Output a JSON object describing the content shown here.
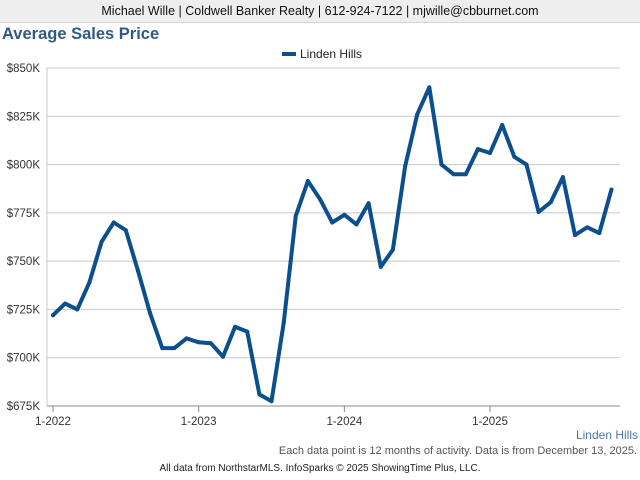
{
  "header": {
    "contact": "Michael Wille | Coldwell Banker Realty | 612-924-7122 | mjwille@cbburnet.com",
    "title": "Average Sales Price"
  },
  "colors": {
    "series": "#0b4f8c",
    "title": "#2f5a86",
    "grid": "#c8c8c8"
  },
  "chart_data": {
    "type": "line",
    "title": "Average Sales Price",
    "legend": "top-center",
    "grid": true,
    "ylim": [
      675000,
      850000
    ],
    "y_ticks": [
      {
        "value": 675000,
        "label": "$675K"
      },
      {
        "value": 700000,
        "label": "$700K"
      },
      {
        "value": 725000,
        "label": "$725K"
      },
      {
        "value": 750000,
        "label": "$750K"
      },
      {
        "value": 775000,
        "label": "$775K"
      },
      {
        "value": 800000,
        "label": "$800K"
      },
      {
        "value": 825000,
        "label": "$825K"
      },
      {
        "value": 850000,
        "label": "$850K"
      }
    ],
    "x_ticks": [
      "1-2022",
      "1-2023",
      "1-2024",
      "1-2025"
    ],
    "x_annotation": "Linden Hills",
    "series": [
      {
        "name": "Linden Hills",
        "x": [
          "1-2022",
          "2-2022",
          "3-2022",
          "4-2022",
          "5-2022",
          "6-2022",
          "7-2022",
          "8-2022",
          "9-2022",
          "10-2022",
          "11-2022",
          "12-2022",
          "1-2023",
          "2-2023",
          "3-2023",
          "4-2023",
          "5-2023",
          "6-2023",
          "7-2023",
          "8-2023",
          "9-2023",
          "10-2023",
          "11-2023",
          "12-2023",
          "1-2024",
          "2-2024",
          "3-2024",
          "4-2024",
          "5-2024",
          "6-2024",
          "7-2024",
          "8-2024",
          "9-2024",
          "10-2024",
          "11-2024",
          "12-2024",
          "1-2025",
          "2-2025",
          "3-2025",
          "4-2025",
          "5-2025",
          "6-2025",
          "7-2025",
          "8-2025",
          "9-2025",
          "10-2025",
          "11-2025"
        ],
        "values": [
          722000,
          728000,
          725000,
          739000,
          760000,
          770000,
          766000,
          745000,
          723000,
          705000,
          705000,
          710000,
          708000,
          707500,
          700500,
          716000,
          713500,
          681000,
          677500,
          718000,
          773500,
          791500,
          782000,
          770000,
          774000,
          769000,
          780000,
          747000,
          756000,
          799000,
          826000,
          840000,
          800000,
          795000,
          795000,
          808000,
          806000,
          820500,
          804000,
          800000,
          775500,
          780500,
          793500,
          763500,
          767500,
          764500,
          787000
        ]
      }
    ]
  },
  "note": "Each data point is 12 months of activity. Data is from December 13, 2025.",
  "footer": "All data from NorthstarMLS. InfoSparks © 2025 ShowingTime Plus, LLC."
}
